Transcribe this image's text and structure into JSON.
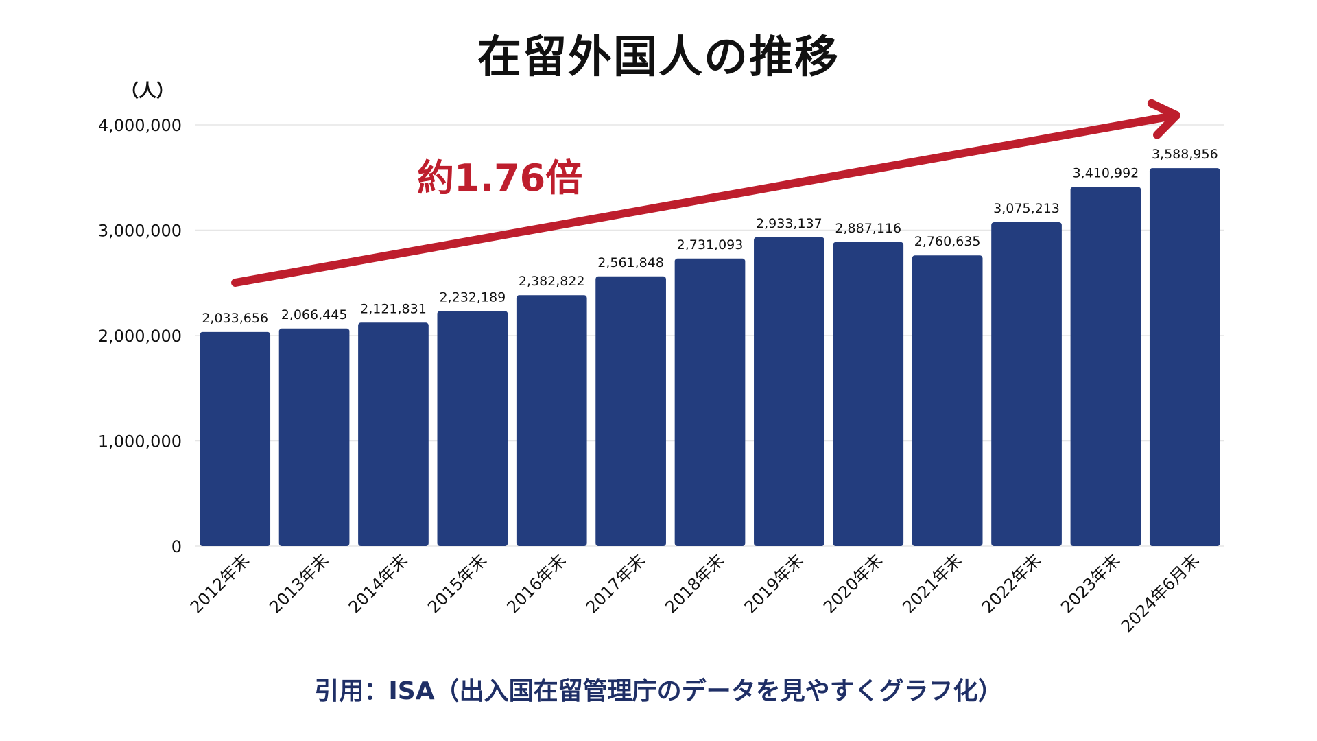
{
  "title": "在留外国人の推移",
  "unit_label": "（人）",
  "source": "引用：ISA（出入国在留管理庁のデータを見やすくグラフ化）",
  "colors": {
    "bar": "#233d7e",
    "arrow": "#be1e2d",
    "grid": "#e6e6e6",
    "text": "#111111"
  },
  "chart_data": {
    "type": "bar",
    "title": "在留外国人の推移",
    "ylabel": "（人）",
    "ylim": [
      0,
      4000000
    ],
    "yticks": [
      0,
      1000000,
      2000000,
      3000000,
      4000000
    ],
    "ytick_labels": [
      "0",
      "1,000,000",
      "2,000,000",
      "3,000,000",
      "4,000,000"
    ],
    "grid": true,
    "categories": [
      "2012年末",
      "2013年末",
      "2014年末",
      "2015年末",
      "2016年末",
      "2017年末",
      "2018年末",
      "2019年末",
      "2020年末",
      "2021年末",
      "2022年末",
      "2023年末",
      "2024年6月末"
    ],
    "values": [
      2033656,
      2066445,
      2121831,
      2232189,
      2382822,
      2561848,
      2731093,
      2933137,
      2887116,
      2760635,
      3075213,
      3410992,
      3588956
    ],
    "value_labels": [
      "2,033,656",
      "2,066,445",
      "2,121,831",
      "2,232,189",
      "2,382,822",
      "2,561,848",
      "2,731,093",
      "2,933,137",
      "2,887,116",
      "2,760,635",
      "3,075,213",
      "3,410,992",
      "3,588,956"
    ],
    "annotation": "約1.76倍"
  }
}
